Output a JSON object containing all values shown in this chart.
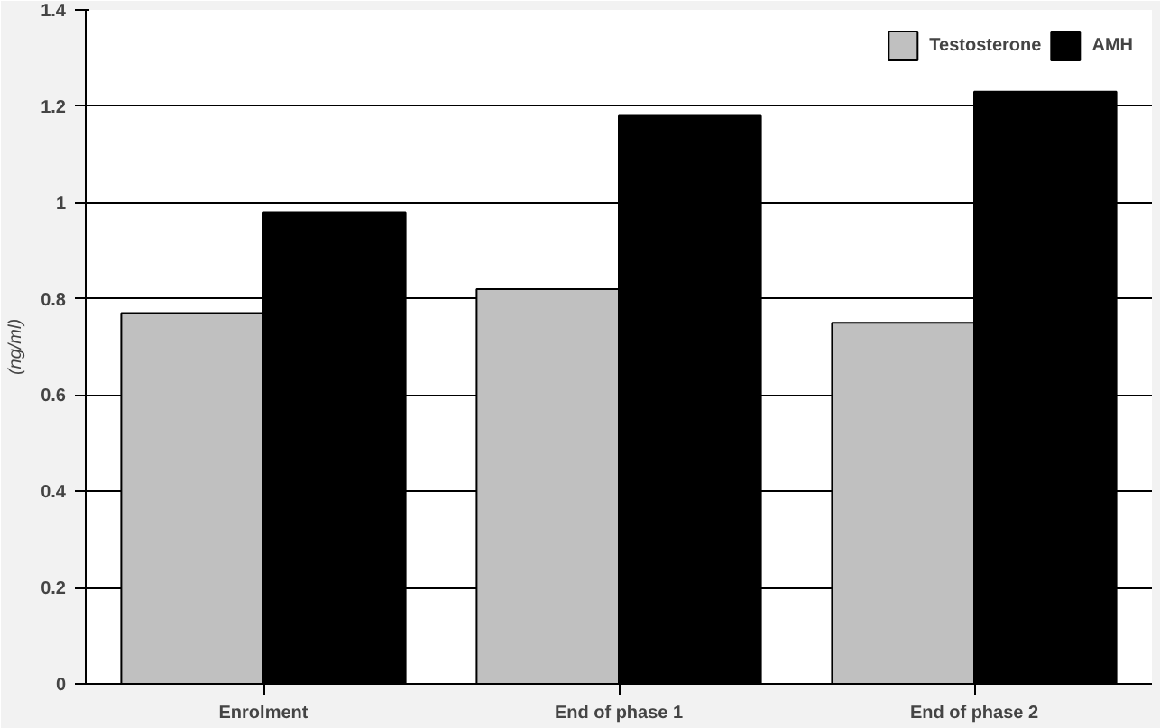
{
  "chart_data": {
    "type": "bar",
    "ylabel": "(ng/ml)",
    "categories": [
      "Enrolment",
      "End of phase 1",
      "End of phase 2"
    ],
    "series": [
      {
        "name": "Testosterone",
        "color": "#c0c0c0",
        "values": [
          0.77,
          0.82,
          0.75
        ]
      },
      {
        "name": "AMH",
        "color": "#000000",
        "values": [
          0.98,
          1.18,
          1.23
        ]
      }
    ],
    "ylim": [
      0,
      1.4
    ],
    "yticks": [
      0,
      0.2,
      0.4,
      0.6,
      0.8,
      1,
      1.2,
      1.4
    ],
    "grid": "y",
    "legend": "top right"
  }
}
